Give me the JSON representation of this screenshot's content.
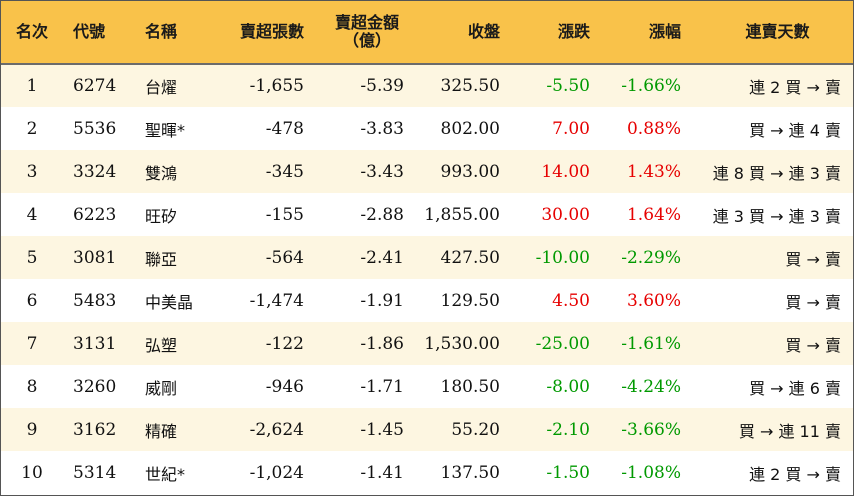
{
  "headers": {
    "rank": "名次",
    "code": "代號",
    "name": "名稱",
    "net_sell_lots": "賣超張數",
    "net_sell_amount_line1": "賣超金額",
    "net_sell_amount_line2": "（億）",
    "close": "收盤",
    "change": "漲跌",
    "change_pct": "漲幅",
    "streak": "連賣天數"
  },
  "colors": {
    "header_bg": "#f9c24a",
    "odd_row_bg": "#fdf6e1",
    "up": "#e60000",
    "down": "#009900"
  },
  "rows": [
    {
      "rank": "1",
      "code": "6274",
      "name": "台燿",
      "lots": "-1,655",
      "amount": "-5.39",
      "close": "325.50",
      "change": "-5.50",
      "pct": "-1.66%",
      "streak": "連 2 買 → 賣",
      "dir": "down"
    },
    {
      "rank": "2",
      "code": "5536",
      "name": "聖暉*",
      "lots": "-478",
      "amount": "-3.83",
      "close": "802.00",
      "change": "7.00",
      "pct": "0.88%",
      "streak": "買 → 連 4 賣",
      "dir": "up"
    },
    {
      "rank": "3",
      "code": "3324",
      "name": "雙鴻",
      "lots": "-345",
      "amount": "-3.43",
      "close": "993.00",
      "change": "14.00",
      "pct": "1.43%",
      "streak": "連 8 買 → 連 3 賣",
      "dir": "up"
    },
    {
      "rank": "4",
      "code": "6223",
      "name": "旺矽",
      "lots": "-155",
      "amount": "-2.88",
      "close": "1,855.00",
      "change": "30.00",
      "pct": "1.64%",
      "streak": "連 3 買 → 連 3 賣",
      "dir": "up"
    },
    {
      "rank": "5",
      "code": "3081",
      "name": "聯亞",
      "lots": "-564",
      "amount": "-2.41",
      "close": "427.50",
      "change": "-10.00",
      "pct": "-2.29%",
      "streak": "買 → 賣",
      "dir": "down"
    },
    {
      "rank": "6",
      "code": "5483",
      "name": "中美晶",
      "lots": "-1,474",
      "amount": "-1.91",
      "close": "129.50",
      "change": "4.50",
      "pct": "3.60%",
      "streak": "買 → 賣",
      "dir": "up"
    },
    {
      "rank": "7",
      "code": "3131",
      "name": "弘塑",
      "lots": "-122",
      "amount": "-1.86",
      "close": "1,530.00",
      "change": "-25.00",
      "pct": "-1.61%",
      "streak": "買 → 賣",
      "dir": "down"
    },
    {
      "rank": "8",
      "code": "3260",
      "name": "威剛",
      "lots": "-946",
      "amount": "-1.71",
      "close": "180.50",
      "change": "-8.00",
      "pct": "-4.24%",
      "streak": "買 → 連 6 賣",
      "dir": "down"
    },
    {
      "rank": "9",
      "code": "3162",
      "name": "精確",
      "lots": "-2,624",
      "amount": "-1.45",
      "close": "55.20",
      "change": "-2.10",
      "pct": "-3.66%",
      "streak": "買 → 連 11 賣",
      "dir": "down"
    },
    {
      "rank": "10",
      "code": "5314",
      "name": "世紀*",
      "lots": "-1,024",
      "amount": "-1.41",
      "close": "137.50",
      "change": "-1.50",
      "pct": "-1.08%",
      "streak": "連 2 買 → 賣",
      "dir": "down"
    }
  ]
}
